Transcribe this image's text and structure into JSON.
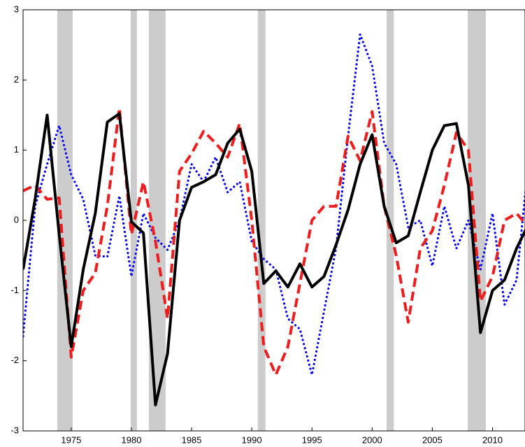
{
  "chart_data": {
    "type": "line",
    "x": [
      1971,
      1972,
      1973,
      1974,
      1975,
      1976,
      1977,
      1978,
      1979,
      1980,
      1981,
      1982,
      1983,
      1984,
      1985,
      1986,
      1987,
      1988,
      1989,
      1990,
      1991,
      1992,
      1993,
      1994,
      1995,
      1996,
      1997,
      1998,
      1999,
      2000,
      2001,
      2002,
      2003,
      2004,
      2005,
      2006,
      2007,
      2008,
      2009,
      2010,
      2011,
      2012,
      2013
    ],
    "series": [
      {
        "color": "#0000ff",
        "style": "dotted",
        "values": [
          -1.65,
          0.2,
          0.8,
          1.35,
          0.65,
          0.3,
          -0.5,
          -0.52,
          0.35,
          -0.8,
          0.1,
          -0.25,
          -0.42,
          0.0,
          0.8,
          0.55,
          0.9,
          0.4,
          0.55,
          -0.3,
          -0.55,
          -0.7,
          -1.4,
          -1.55,
          -2.2,
          -1.3,
          -0.4,
          1.2,
          2.65,
          2.2,
          1.1,
          0.8,
          -0.1,
          0.0,
          -0.65,
          0.2,
          -0.4,
          0.0,
          -0.7,
          0.1,
          -1.2,
          -0.85,
          0.85
        ]
      },
      {
        "color": "#ee1c1c",
        "style": "dashed",
        "values": [
          0.42,
          0.5,
          0.3,
          0.32,
          -1.95,
          -1.0,
          -0.75,
          0.2,
          1.6,
          -0.2,
          0.55,
          -0.3,
          -1.4,
          0.7,
          0.95,
          1.27,
          1.1,
          0.9,
          1.38,
          0.0,
          -1.8,
          -2.2,
          -1.8,
          -0.9,
          0.0,
          0.2,
          0.2,
          1.2,
          0.85,
          1.55,
          0.2,
          -0.5,
          -1.45,
          -0.4,
          -0.15,
          0.5,
          1.25,
          1.0,
          -1.15,
          -0.8,
          0.0,
          0.1,
          -0.1
        ]
      },
      {
        "color": "#000000",
        "style": "solid",
        "values": [
          -0.7,
          0.3,
          1.5,
          -0.2,
          -1.8,
          -0.7,
          0.1,
          1.4,
          1.52,
          -0.02,
          -0.18,
          -2.63,
          -1.9,
          0.0,
          0.47,
          0.55,
          0.65,
          1.1,
          1.3,
          0.7,
          -0.9,
          -0.72,
          -0.95,
          -0.62,
          -0.95,
          -0.8,
          -0.35,
          0.15,
          0.8,
          1.22,
          0.2,
          -0.32,
          -0.22,
          0.4,
          1.0,
          1.35,
          1.38,
          0.5,
          -1.6,
          -1.0,
          -0.85,
          -0.4,
          -0.05
        ]
      }
    ],
    "shaded": [
      [
        1973.84,
        1975.12
      ],
      [
        1979.94,
        1980.46
      ],
      [
        1981.45,
        1982.84
      ],
      [
        1990.5,
        1991.14
      ],
      [
        2001.2,
        2001.8
      ],
      [
        2007.94,
        2009.45
      ]
    ],
    "shade_color": "#cccccc",
    "xlim": [
      1971,
      2012.7
    ],
    "ylim": [
      -3,
      3
    ],
    "xticks": [
      1975,
      1980,
      1985,
      1990,
      1995,
      2000,
      2005,
      2010
    ],
    "yticks": [
      -3,
      -2,
      -1,
      0,
      1,
      2,
      3
    ]
  }
}
